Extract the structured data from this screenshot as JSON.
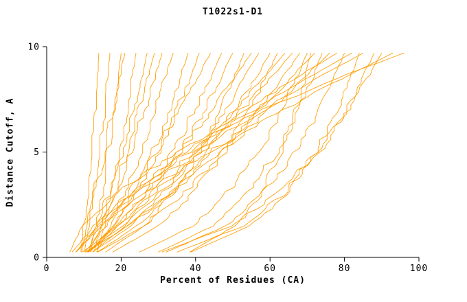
{
  "page": {
    "background_color": "#ffffff",
    "text_color": "#000000"
  },
  "chart_data": {
    "type": "line",
    "title": "T1022s1-D1",
    "xlabel": "Percent of Residues (CA)",
    "ylabel": "Distance Cutoff, A",
    "xlim": [
      0,
      100
    ],
    "ylim": [
      0,
      10
    ],
    "x_ticks": [
      0,
      20,
      40,
      60,
      80,
      100
    ],
    "y_ticks": [
      0,
      5,
      10
    ],
    "grid": false,
    "legend": "none",
    "line_color": "#ff9c00",
    "axis_color": "#000000",
    "y_anchors": [
      0.25,
      1.5,
      3,
      5,
      7,
      8.5,
      9.7
    ],
    "series": [
      [
        9.2,
        9.8,
        10.5,
        11.6,
        12.6,
        13.4,
        14
      ],
      [
        10.2,
        11.1,
        12.2,
        13.6,
        15.1,
        16.1,
        17
      ],
      [
        11.6,
        13,
        14.5,
        16.3,
        17.9,
        19.1,
        20
      ],
      [
        9.4,
        10.9,
        12.7,
        15.2,
        17.7,
        19.5,
        21
      ],
      [
        12.7,
        14.7,
        16.7,
        19.1,
        21.2,
        22.8,
        24
      ],
      [
        11.1,
        13.8,
        16.6,
        20,
        23.1,
        25.3,
        27
      ],
      [
        13.5,
        15.5,
        17.9,
        21.2,
        24.6,
        27,
        29
      ],
      [
        11.3,
        14.7,
        18.2,
        22.3,
        26.2,
        28.9,
        31
      ],
      [
        13.4,
        17,
        20.6,
        24.9,
        28.9,
        31.8,
        34
      ],
      [
        11.7,
        17.8,
        22.8,
        28.2,
        32.7,
        35.7,
        38
      ],
      [
        11.2,
        18.1,
        23.8,
        29.8,
        34.9,
        38.4,
        41
      ],
      [
        10.2,
        16.1,
        22.1,
        29.2,
        35.7,
        40.4,
        44
      ],
      [
        11.1,
        19.4,
        26.3,
        33.6,
        39.7,
        43.9,
        47
      ],
      [
        12.3,
        21.1,
        28.2,
        35.9,
        42.3,
        46.7,
        50
      ],
      [
        15.8,
        26.3,
        33.7,
        40.9,
        46.6,
        50.3,
        53
      ],
      [
        10.9,
        18.6,
        26.4,
        35.6,
        44.2,
        50.3,
        55
      ],
      [
        12.3,
        22.7,
        31.2,
        40.3,
        47.9,
        53.1,
        57
      ],
      [
        13.6,
        24.3,
        33.2,
        42.6,
        50.6,
        56,
        60
      ],
      [
        17.7,
        30.2,
        39,
        47.6,
        54.4,
        58.7,
        62
      ],
      [
        9.6,
        19.1,
        28.7,
        40.1,
        50.7,
        58.2,
        64
      ],
      [
        10.7,
        20.3,
        30.1,
        41.7,
        52.4,
        60.1,
        66
      ],
      [
        13.7,
        26.3,
        36.6,
        47.7,
        57,
        63.3,
        68
      ],
      [
        24.9,
        39.3,
        48.4,
        56.8,
        63.1,
        67.1,
        70
      ],
      [
        11,
        21.6,
        32.4,
        45.2,
        57.1,
        65.5,
        72
      ],
      [
        30,
        44.9,
        53.8,
        61.7,
        67.7,
        71.3,
        74
      ],
      [
        10.3,
        21.8,
        33.4,
        47.2,
        59.9,
        69,
        76
      ],
      [
        7.8,
        13.3,
        22.4,
        37,
        53.5,
        66.8,
        78
      ],
      [
        32.1,
        48.3,
        58,
        66.6,
        73.1,
        77.1,
        80
      ],
      [
        6.8,
        12.7,
        22.5,
        38.1,
        55.8,
        70,
        82
      ],
      [
        7.9,
        13.9,
        23.9,
        39.9,
        58.1,
        72.7,
        85
      ],
      [
        35,
        52.9,
        63.6,
        73.2,
        80.4,
        84.8,
        88
      ],
      [
        30.9,
        49.8,
        61.7,
        72.6,
        80.9,
        86.2,
        90
      ],
      [
        7.9,
        14.6,
        25.7,
        43.3,
        63.3,
        79.4,
        93
      ],
      [
        6.2,
        9.8,
        18.2,
        35.1,
        57.8,
        77.9,
        96
      ],
      [
        38.4,
        50.8,
        57.4,
        62.9,
        66.9,
        69.3,
        71
      ],
      [
        38.7,
        54.9,
        64.2,
        72.1,
        77.9,
        81.4,
        84
      ]
    ]
  }
}
